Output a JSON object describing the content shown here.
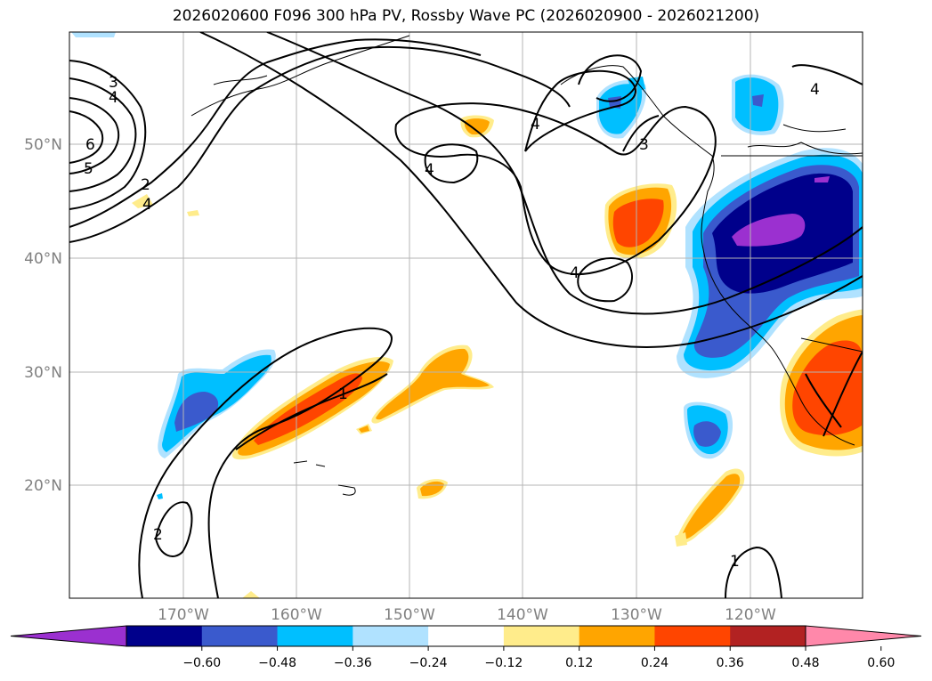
{
  "title": "2026020600 F096 300 hPa PV, Rossby Wave PC (2026020900 - 2026021200)",
  "lat_labels": [
    "50°N",
    "40°N",
    "30°N",
    "20°N"
  ],
  "lon_labels": [
    "170°W",
    "160°W",
    "150°W",
    "140°W",
    "130°W",
    "120°W"
  ],
  "contour_labels": [
    "3",
    "4",
    "6",
    "5",
    "2",
    "4",
    "4",
    "4",
    "3",
    "4",
    "1",
    "2",
    "4",
    "1"
  ],
  "colorbar": {
    "tick_labels": [
      "−0.60",
      "−0.48",
      "−0.36",
      "−0.24",
      "−0.12",
      "0.12",
      "0.24",
      "0.36",
      "0.48",
      "0.60"
    ],
    "colors": [
      "#9b30d0",
      "#00008b",
      "#3a5acd",
      "#00bfff",
      "#b0e2ff",
      "#ffffff",
      "#ffec8b",
      "#ffa500",
      "#ff4500",
      "#b22222",
      "#ff88aa"
    ]
  },
  "colors": {
    "negative_strong": "#00008b",
    "negative_mid": "#3a5acd",
    "negative_weak": "#00bfff",
    "positive_weak": "#ffec8b",
    "positive_mid": "#ffa500",
    "positive_strong": "#ff4500"
  }
}
